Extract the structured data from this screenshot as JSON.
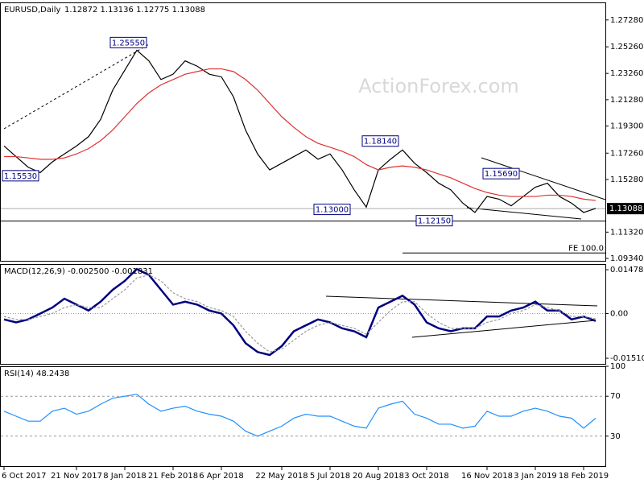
{
  "chart_data": [
    {
      "type": "line",
      "title": "EURUSD,Daily",
      "subtitle": "1.12872 1.13136 1.12775 1.13088",
      "watermark": "ActionForex.com",
      "ylim": [
        1.091,
        1.286
      ],
      "yticks": [
        {
          "value": 1.2728,
          "label": "1.27280"
        },
        {
          "value": 1.2526,
          "label": "1.25260"
        },
        {
          "value": 1.2326,
          "label": "1.23260"
        },
        {
          "value": 1.2128,
          "label": "1.21280"
        },
        {
          "value": 1.193,
          "label": "1.19300"
        },
        {
          "value": 1.1726,
          "label": "1.17260"
        },
        {
          "value": 1.1528,
          "label": "1.15280"
        },
        {
          "value": 1.1132,
          "label": "1.11320"
        },
        {
          "value": 1.0934,
          "label": "1.09340"
        }
      ],
      "grid": false,
      "series": [
        {
          "color": "#000000",
          "values": [
            1.178,
            1.17,
            1.162,
            1.158,
            1.166,
            1.172,
            1.178,
            1.185,
            1.198,
            1.22,
            1.235,
            1.25,
            1.242,
            1.228,
            1.232,
            1.242,
            1.238,
            1.232,
            1.23,
            1.215,
            1.19,
            1.172,
            1.16,
            1.165,
            1.17,
            1.175,
            1.168,
            1.172,
            1.16,
            1.145,
            1.132,
            1.16,
            1.168,
            1.175,
            1.165,
            1.158,
            1.15,
            1.145,
            1.135,
            1.128,
            1.14,
            1.138,
            1.133,
            1.14,
            1.147,
            1.15,
            1.14,
            1.135,
            1.128,
            1.131
          ]
        },
        {
          "color": "#e03030",
          "values": [
            1.17,
            1.17,
            1.169,
            1.168,
            1.168,
            1.169,
            1.172,
            1.176,
            1.182,
            1.19,
            1.2,
            1.21,
            1.218,
            1.224,
            1.228,
            1.232,
            1.234,
            1.236,
            1.236,
            1.234,
            1.228,
            1.22,
            1.21,
            1.2,
            1.192,
            1.185,
            1.18,
            1.177,
            1.174,
            1.17,
            1.164,
            1.16,
            1.162,
            1.163,
            1.162,
            1.16,
            1.157,
            1.154,
            1.15,
            1.146,
            1.143,
            1.141,
            1.14,
            1.14,
            1.14,
            1.141,
            1.141,
            1.14,
            1.138,
            1.137
          ]
        }
      ],
      "annotations": [
        {
          "value": 1.2555,
          "label": "1.25550"
        },
        {
          "value": 1.1553,
          "label": "1.15530"
        },
        {
          "value": 1.1814,
          "label": "1.18140"
        },
        {
          "value": 1.13,
          "label": "1.13000"
        },
        {
          "value": 1.1215,
          "label": "1.12150"
        },
        {
          "value": 1.1569,
          "label": "1.15690"
        }
      ],
      "support_level": 1.1215,
      "fe_level": {
        "value": 1.0975,
        "label": "FE 100.0"
      },
      "last_price": 1.13088
    },
    {
      "type": "line",
      "title": "MACD(12,26,9) -0.002500 -0.001831",
      "ylim": [
        -0.017,
        0.0167
      ],
      "yticks": [
        0.014786,
        {
          "value": 0,
          "label": "0.00"
        },
        -0.015107
      ],
      "levels": [
        0
      ],
      "series": [
        {
          "color": "#000080",
          "values": [
            -0.002,
            -0.003,
            -0.002,
            0.0,
            0.002,
            0.005,
            0.003,
            0.001,
            0.004,
            0.008,
            0.011,
            0.015,
            0.013,
            0.008,
            0.003,
            0.004,
            0.003,
            0.001,
            0.0,
            -0.004,
            -0.01,
            -0.013,
            -0.014,
            -0.011,
            -0.006,
            -0.004,
            -0.002,
            -0.003,
            -0.005,
            -0.006,
            -0.008,
            0.002,
            0.004,
            0.006,
            0.003,
            -0.003,
            -0.005,
            -0.006,
            -0.005,
            -0.005,
            -0.001,
            -0.001,
            0.001,
            0.002,
            0.004,
            0.001,
            0.001,
            -0.002,
            -0.001,
            -0.0025
          ]
        },
        {
          "color": "#999999",
          "values": [
            -0.001,
            -0.002,
            -0.002,
            -0.001,
            0.0,
            0.002,
            0.003,
            0.002,
            0.002,
            0.005,
            0.008,
            0.012,
            0.013,
            0.011,
            0.007,
            0.005,
            0.004,
            0.002,
            0.001,
            -0.001,
            -0.006,
            -0.01,
            -0.013,
            -0.012,
            -0.009,
            -0.006,
            -0.004,
            -0.003,
            -0.004,
            -0.005,
            -0.007,
            -0.003,
            0.001,
            0.004,
            0.004,
            0.0,
            -0.003,
            -0.005,
            -0.005,
            -0.005,
            -0.003,
            -0.002,
            0.0,
            0.001,
            0.003,
            0.002,
            0.001,
            -0.001,
            -0.001,
            -0.0018
          ]
        }
      ]
    },
    {
      "type": "line",
      "title": "RSI(14) 48.2438",
      "ylim": [
        0,
        100
      ],
      "yticks": [
        100,
        70,
        30
      ],
      "levels": [
        70,
        30
      ],
      "categories": [
        "6 Oct 2017",
        null,
        null,
        null,
        null,
        null,
        "21 Nov 2017",
        null,
        null,
        null,
        "8 Jan 2018",
        null,
        null,
        null,
        "21 Feb 2018",
        null,
        null,
        null,
        "6 Apr 2018",
        null,
        null,
        null,
        null,
        "22 May 2018",
        null,
        null,
        null,
        "5 Jul 2018",
        null,
        null,
        null,
        "20 Aug 2018",
        null,
        null,
        null,
        "3 Oct 2018",
        null,
        null,
        null,
        null,
        "16 Nov 2018",
        null,
        null,
        null,
        "3 Jan 2019",
        null,
        null,
        null,
        "18 Feb 2019",
        null
      ],
      "series": [
        {
          "color": "#1e90ff",
          "values": [
            55,
            50,
            45,
            45,
            55,
            58,
            52,
            55,
            62,
            68,
            70,
            72,
            62,
            55,
            58,
            60,
            55,
            52,
            50,
            45,
            35,
            30,
            35,
            40,
            48,
            52,
            50,
            50,
            45,
            40,
            38,
            58,
            62,
            65,
            52,
            48,
            42,
            42,
            38,
            40,
            55,
            50,
            50,
            55,
            58,
            55,
            50,
            48,
            38,
            48
          ]
        }
      ]
    }
  ]
}
